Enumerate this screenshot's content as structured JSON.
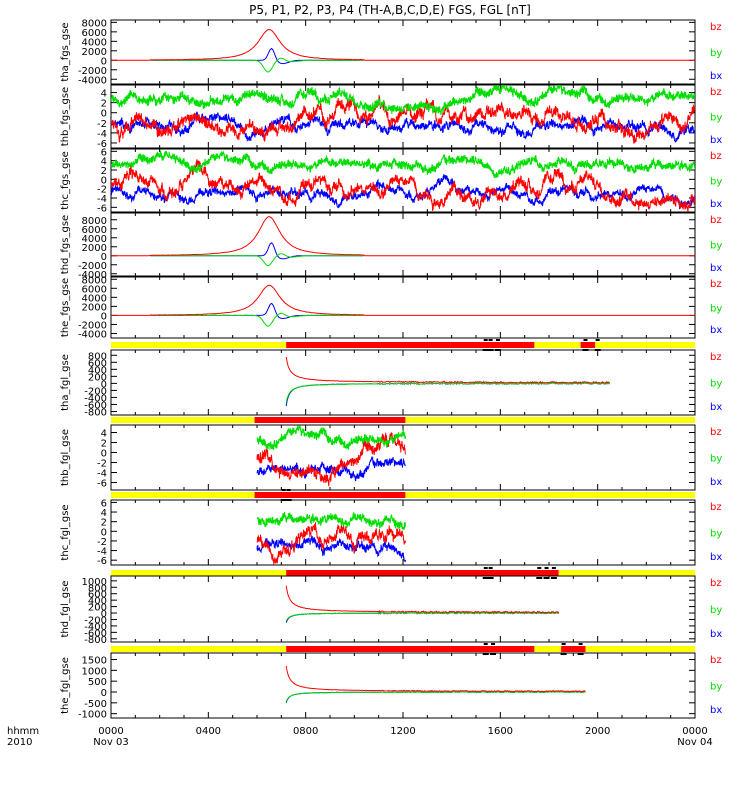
{
  "page_title": "P5, P1, P2, P3, P4 (TH-A,B,C,D,E) FGS, FGL [nT]",
  "time_axis": {
    "row_label": "hhmm",
    "year_label": "2010",
    "start_date": "Nov 03",
    "end_date": "Nov 04",
    "ticks": [
      {
        "label": "0000",
        "hour": 0
      },
      {
        "label": "0400",
        "hour": 4
      },
      {
        "label": "0800",
        "hour": 8
      },
      {
        "label": "1200",
        "hour": 12
      },
      {
        "label": "1600",
        "hour": 16
      },
      {
        "label": "2000",
        "hour": 20
      },
      {
        "label": "0000",
        "hour": 24
      }
    ]
  },
  "colors": {
    "bx": "#0000ff",
    "by": "#00dd00",
    "bz": "#ff0000",
    "bar_yellow": "#ffff00",
    "bar_red": "#ff0000"
  },
  "chart_data": [
    {
      "type": "line",
      "ylabel": "tha_fgs_gse",
      "ylim": [
        -5000,
        8500
      ],
      "yticks": [
        "8000",
        "6000",
        "4000",
        "2000",
        "0",
        "-2000",
        "-4000"
      ],
      "ytick_values": [
        8000,
        6000,
        4000,
        2000,
        0,
        -2000,
        -4000
      ],
      "kind": "pulse",
      "bz_peak": 6500,
      "bx_peak": 2600,
      "by_dip": -2500,
      "x_start": 1.6,
      "x_end": 10.4,
      "series": [
        {
          "name": "bz"
        },
        {
          "name": "by"
        },
        {
          "name": "bx"
        }
      ]
    },
    {
      "type": "line",
      "ylabel": "thb_fgs_gse",
      "ylim": [
        -7,
        5.5
      ],
      "yticks": [
        "4",
        "2",
        "0",
        "-2",
        "-4",
        "-6"
      ],
      "ytick_values": [
        4,
        2,
        0,
        -2,
        -4,
        -6
      ],
      "kind": "noise",
      "by_mean": 2.8,
      "bz_mean": -1.5,
      "bx_mean": -2.5,
      "x_start": 0,
      "x_end": 24,
      "series": [
        {
          "name": "bz"
        },
        {
          "name": "by"
        },
        {
          "name": "bx"
        }
      ]
    },
    {
      "type": "line",
      "ylabel": "thc_fgs_gse",
      "ylim": [
        -7,
        6.5
      ],
      "yticks": [
        "6",
        "4",
        "2",
        "0",
        "-2",
        "-4",
        "-6"
      ],
      "ytick_values": [
        6,
        4,
        2,
        0,
        -2,
        -4,
        -6
      ],
      "kind": "noise",
      "by_mean": 3.0,
      "bz_mean": -1.5,
      "bx_mean": -2.8,
      "x_start": 0,
      "x_end": 24,
      "series": [
        {
          "name": "bz"
        },
        {
          "name": "by"
        },
        {
          "name": "bx"
        }
      ]
    },
    {
      "type": "line",
      "ylabel": "thd_fgs_gse",
      "ylim": [
        -4500,
        9500
      ],
      "yticks": [
        "8000",
        "6000",
        "4000",
        "2000",
        "0",
        "-2000",
        "-4000"
      ],
      "ytick_values": [
        8000,
        6000,
        4000,
        2000,
        0,
        -2000,
        -4000
      ],
      "kind": "pulse",
      "bz_peak": 8700,
      "bx_peak": 3000,
      "by_dip": -2200,
      "x_start": 1.6,
      "x_end": 10.4,
      "series": [
        {
          "name": "bz"
        },
        {
          "name": "by"
        },
        {
          "name": "bx"
        }
      ]
    },
    {
      "type": "line",
      "ylabel": "the_fgs_gse",
      "ylim": [
        -5000,
        8500
      ],
      "yticks": [
        "8000",
        "6000",
        "4000",
        "2000",
        "0",
        "-2000",
        "-4000"
      ],
      "ytick_values": [
        8000,
        6000,
        4000,
        2000,
        0,
        -2000,
        -4000
      ],
      "kind": "pulse",
      "bz_peak": 6700,
      "bx_peak": 2800,
      "by_dip": -2400,
      "x_start": 1.6,
      "x_end": 10.4,
      "series": [
        {
          "name": "bz"
        },
        {
          "name": "by"
        },
        {
          "name": "bx"
        }
      ]
    },
    {
      "type": "line",
      "ylabel": "tha_fgl_gse",
      "ylim": [
        -900,
        950
      ],
      "yticks": [
        "800",
        "600",
        "400",
        "200",
        "0",
        "-200",
        "-400",
        "-600",
        "-800"
      ],
      "ytick_values": [
        800,
        600,
        400,
        200,
        0,
        -200,
        -400,
        -600,
        -800
      ],
      "kind": "decay",
      "x_start": 7.2,
      "x_end": 20.5,
      "bz_start": 750,
      "bz_end": 20,
      "bx_start": -650,
      "by_start": -550,
      "mode_bar": {
        "segments": [
          {
            "from": 0,
            "to": 7.2,
            "color": "yellow"
          },
          {
            "from": 7.2,
            "to": 17.4,
            "color": "red"
          },
          {
            "from": 17.4,
            "to": 19.3,
            "color": "yellow"
          },
          {
            "from": 19.3,
            "to": 19.9,
            "color": "red"
          },
          {
            "from": 19.9,
            "to": 24,
            "color": "yellow"
          }
        ],
        "marks": [
          15.4,
          15.6,
          15.9,
          19.5,
          20.0
        ]
      },
      "series": [
        {
          "name": "bz"
        },
        {
          "name": "by"
        },
        {
          "name": "bx"
        }
      ]
    },
    {
      "type": "line",
      "ylabel": "thb_fgl_gse",
      "ylim": [
        -7.5,
        5.5
      ],
      "yticks": [
        "4",
        "2",
        "0",
        "-2",
        "-4",
        "-6"
      ],
      "ytick_values": [
        4,
        2,
        0,
        -2,
        -4,
        -6
      ],
      "kind": "noise",
      "by_mean": 2.5,
      "bz_mean": -1.2,
      "bx_mean": -3.5,
      "x_start": 6.0,
      "x_end": 12.1,
      "mode_bar": {
        "segments": [
          {
            "from": 0,
            "to": 5.9,
            "color": "yellow"
          },
          {
            "from": 5.9,
            "to": 12.1,
            "color": "red"
          },
          {
            "from": 12.1,
            "to": 24,
            "color": "yellow"
          }
        ],
        "marks": []
      },
      "series": [
        {
          "name": "bz"
        },
        {
          "name": "by"
        },
        {
          "name": "bx"
        }
      ]
    },
    {
      "type": "line",
      "ylabel": "thc_fgl_gse",
      "ylim": [
        -7,
        6.5
      ],
      "yticks": [
        "6",
        "4",
        "2",
        "0",
        "-2",
        "-4",
        "-6"
      ],
      "ytick_values": [
        6,
        4,
        2,
        0,
        -2,
        -4,
        -6
      ],
      "kind": "noise",
      "by_mean": 2.6,
      "bz_mean": -1.5,
      "bx_mean": -3.0,
      "x_start": 6.0,
      "x_end": 12.1,
      "mode_bar": {
        "segments": [
          {
            "from": 0,
            "to": 5.9,
            "color": "yellow"
          },
          {
            "from": 5.9,
            "to": 12.1,
            "color": "red"
          },
          {
            "from": 12.1,
            "to": 24,
            "color": "yellow"
          }
        ],
        "marks": [
          7.1,
          7.3
        ]
      },
      "series": [
        {
          "name": "bz"
        },
        {
          "name": "by"
        },
        {
          "name": "bx"
        }
      ]
    },
    {
      "type": "line",
      "ylabel": "thd_fgl_gse",
      "ylim": [
        -900,
        1150
      ],
      "yticks": [
        "1000",
        "800",
        "600",
        "400",
        "200",
        "0",
        "-200",
        "-400",
        "-600",
        "-800"
      ],
      "ytick_values": [
        1000,
        800,
        600,
        400,
        200,
        0,
        -200,
        -400,
        -600,
        -800
      ],
      "kind": "decay",
      "x_start": 7.2,
      "x_end": 18.4,
      "bz_start": 850,
      "bz_end": 15,
      "bx_start": -300,
      "by_start": -250,
      "mode_bar": {
        "segments": [
          {
            "from": 0,
            "to": 7.2,
            "color": "yellow"
          },
          {
            "from": 7.2,
            "to": 18.4,
            "color": "red"
          },
          {
            "from": 18.4,
            "to": 24,
            "color": "yellow"
          }
        ],
        "marks": [
          15.4,
          15.6,
          17.6,
          17.9,
          18.2
        ]
      },
      "series": [
        {
          "name": "bz"
        },
        {
          "name": "by"
        },
        {
          "name": "bx"
        }
      ]
    },
    {
      "type": "line",
      "ylabel": "the_fgl_gse",
      "ylim": [
        -1200,
        1800
      ],
      "yticks": [
        "1500",
        "1000",
        "500",
        "0",
        "-500",
        "-1000"
      ],
      "ytick_values": [
        1500,
        1000,
        500,
        0,
        -500,
        -1000
      ],
      "kind": "decay",
      "x_start": 7.2,
      "x_end": 19.5,
      "bz_start": 1200,
      "bz_end": 20,
      "bx_start": -500,
      "by_start": -450,
      "mode_bar": {
        "segments": [
          {
            "from": 0,
            "to": 7.2,
            "color": "yellow"
          },
          {
            "from": 7.2,
            "to": 17.4,
            "color": "red"
          },
          {
            "from": 17.4,
            "to": 18.5,
            "color": "yellow"
          },
          {
            "from": 18.5,
            "to": 19.5,
            "color": "red"
          },
          {
            "from": 19.5,
            "to": 24,
            "color": "yellow"
          }
        ],
        "marks": [
          15.4,
          15.7,
          18.6,
          19.3
        ]
      },
      "series": [
        {
          "name": "bz"
        },
        {
          "name": "by"
        },
        {
          "name": "bx"
        }
      ]
    }
  ]
}
